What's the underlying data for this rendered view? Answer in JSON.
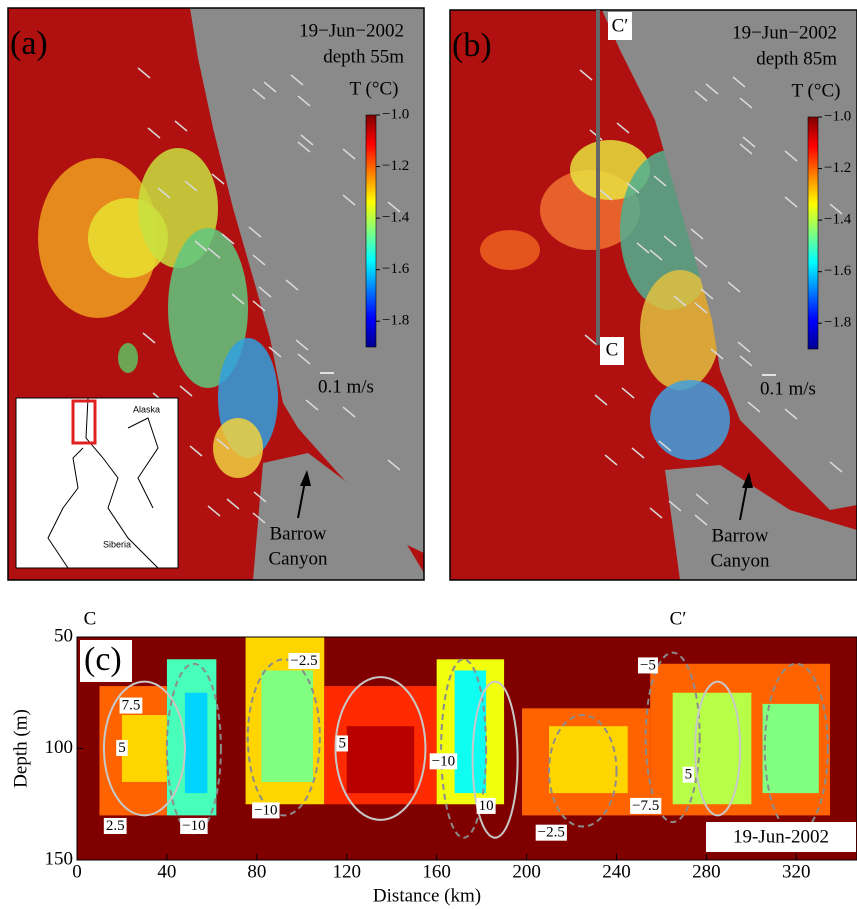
{
  "chart_data": [
    {
      "type": "map",
      "panel_label": "(a)",
      "date": "19−Jun−2002",
      "depth_label": "depth 55m",
      "colorbar": {
        "label": "T (°C)",
        "lim": [
          -1.9,
          -1.0
        ],
        "ticks": [
          {
            "value": -1.0,
            "label": "−1.0"
          },
          {
            "value": -1.2,
            "label": "−1.2"
          },
          {
            "value": -1.4,
            "label": "−1.4"
          },
          {
            "value": -1.6,
            "label": "−1.6"
          },
          {
            "value": -1.8,
            "label": "−1.8"
          }
        ]
      },
      "scale_label": "0.1 m/s",
      "annotation": [
        "Barrow",
        "Canyon"
      ],
      "inset_labels": [
        "Alaska",
        "Siberia"
      ]
    },
    {
      "type": "map",
      "panel_label": "(b)",
      "date": "19−Jun−2002",
      "depth_label": "depth 85m",
      "colorbar": {
        "label": "T (°C)",
        "lim": [
          -1.9,
          -1.0
        ],
        "ticks": [
          {
            "value": -1.0,
            "label": "−1.0"
          },
          {
            "value": -1.2,
            "label": "−1.2"
          },
          {
            "value": -1.4,
            "label": "−1.4"
          },
          {
            "value": -1.6,
            "label": "−1.6"
          },
          {
            "value": -1.8,
            "label": "−1.8"
          }
        ]
      },
      "scale_label": "0.1 m/s",
      "annotation": [
        "Barrow",
        "Canyon"
      ],
      "section_labels": [
        "C′",
        "C"
      ]
    },
    {
      "type": "heatmap",
      "panel_label": "(c)",
      "x_label": "Distance (km)",
      "y_label": "Depth (m)",
      "section_labels": [
        "C",
        "C′"
      ],
      "date": "19-Jun-2002",
      "xlim": [
        0,
        347
      ],
      "ylim": [
        150,
        50
      ],
      "xticks": [
        0,
        40,
        80,
        120,
        160,
        200,
        240,
        280,
        320
      ],
      "yticks": [
        50,
        100,
        150
      ],
      "clim": [
        -1.9,
        -1.0
      ],
      "background_value": -1.0,
      "cells": [
        {
          "x": [
            10,
            40
          ],
          "y": [
            72,
            130
          ],
          "value": -1.2
        },
        {
          "x": [
            20,
            40
          ],
          "y": [
            85,
            115
          ],
          "value": -1.3
        },
        {
          "x": [
            40,
            62
          ],
          "y": [
            60,
            130
          ],
          "value": -1.5
        },
        {
          "x": [
            48,
            58
          ],
          "y": [
            75,
            120
          ],
          "value": -1.6
        },
        {
          "x": [
            75,
            110
          ],
          "y": [
            50,
            125
          ],
          "value": -1.3
        },
        {
          "x": [
            82,
            105
          ],
          "y": [
            65,
            115
          ],
          "value": -1.45
        },
        {
          "x": [
            110,
            160
          ],
          "y": [
            72,
            125
          ],
          "value": -1.15
        },
        {
          "x": [
            120,
            150
          ],
          "y": [
            90,
            120
          ],
          "value": -1.05
        },
        {
          "x": [
            160,
            190
          ],
          "y": [
            60,
            125
          ],
          "value": -1.35
        },
        {
          "x": [
            168,
            182
          ],
          "y": [
            65,
            120
          ],
          "value": -1.55
        },
        {
          "x": [
            198,
            255
          ],
          "y": [
            82,
            130
          ],
          "value": -1.2
        },
        {
          "x": [
            210,
            245
          ],
          "y": [
            90,
            120
          ],
          "value": -1.3
        },
        {
          "x": [
            255,
            335
          ],
          "y": [
            62,
            130
          ],
          "value": -1.2
        },
        {
          "x": [
            265,
            300
          ],
          "y": [
            75,
            125
          ],
          "value": -1.4
        },
        {
          "x": [
            305,
            330
          ],
          "y": [
            80,
            120
          ],
          "value": -1.45
        }
      ],
      "contour_labels": [
        {
          "x": 24,
          "y": 81,
          "value": 7.5
        },
        {
          "x": 20,
          "y": 100,
          "value": 5
        },
        {
          "x": 17,
          "y": 135,
          "value": 2.5
        },
        {
          "x": 52,
          "y": 135,
          "value": -10,
          "label": "−10"
        },
        {
          "x": 84,
          "y": 128,
          "value": -10,
          "label": "−10"
        },
        {
          "x": 101,
          "y": 61,
          "value": -2.5,
          "label": "−2.5"
        },
        {
          "x": 118,
          "y": 98,
          "value": 5
        },
        {
          "x": 163,
          "y": 106,
          "value": -10,
          "label": "−10"
        },
        {
          "x": 182,
          "y": 126,
          "value": 10
        },
        {
          "x": 211,
          "y": 138,
          "value": -2.5,
          "label": "−2.5"
        },
        {
          "x": 254,
          "y": 63,
          "value": -5,
          "label": "−5"
        },
        {
          "x": 253,
          "y": 126,
          "value": -7.5,
          "label": "−7.5"
        },
        {
          "x": 272,
          "y": 112,
          "value": 5
        }
      ]
    }
  ]
}
